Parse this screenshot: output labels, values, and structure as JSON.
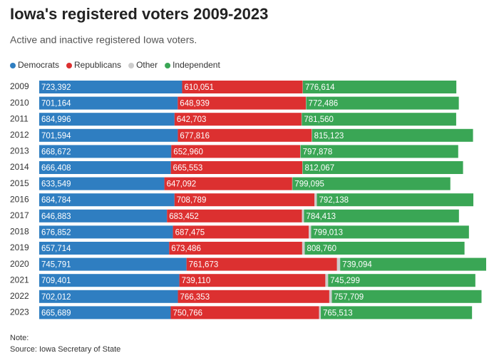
{
  "chart_data": {
    "type": "stacked-barh",
    "title": "Iowa's registered voters 2009-2023",
    "subtitle": "Active and inactive registered Iowa voters.",
    "categories": [
      "2009",
      "2010",
      "2011",
      "2012",
      "2013",
      "2014",
      "2015",
      "2016",
      "2017",
      "2018",
      "2019",
      "2020",
      "2021",
      "2022",
      "2023"
    ],
    "series": [
      {
        "name": "Democrats",
        "color": "#2f7ec1",
        "values": [
          723392,
          701164,
          684996,
          701594,
          668672,
          666408,
          633549,
          684784,
          646883,
          676852,
          657714,
          745791,
          709401,
          702012,
          665689
        ],
        "value_labels": [
          "723,392",
          "701,164",
          "684,996",
          "701,594",
          "668,672",
          "666,408",
          "633,549",
          "684,784",
          "646,883",
          "676,852",
          "657,714",
          "745,791",
          "709,401",
          "702,012",
          "665,689"
        ]
      },
      {
        "name": "Republicans",
        "color": "#dc3030",
        "values": [
          610051,
          648939,
          642703,
          677816,
          652960,
          665553,
          647092,
          708789,
          683452,
          687475,
          673486,
          761673,
          739110,
          766353,
          750766
        ],
        "value_labels": [
          "610,051",
          "648,939",
          "642,703",
          "677,816",
          "652,960",
          "665,553",
          "647,092",
          "708,789",
          "683,452",
          "687,475",
          "673,486",
          "761,673",
          "739,110",
          "766,353",
          "750,766"
        ]
      },
      {
        "name": "Other",
        "color": "#cccccc",
        "values": [
          1500,
          1500,
          1500,
          1500,
          1500,
          1500,
          1500,
          12000,
          10000,
          12000,
          13000,
          16000,
          14000,
          13000,
          9000
        ]
      },
      {
        "name": "Independent",
        "color": "#3aa655",
        "values": [
          776614,
          772486,
          781560,
          815123,
          797878,
          812067,
          799095,
          792138,
          784413,
          799013,
          808760,
          739094,
          745299,
          757709,
          765513
        ],
        "value_labels": [
          "776,614",
          "772,486",
          "781,560",
          "815,123",
          "797,878",
          "812,067",
          "799,095",
          "792,138",
          "784,413",
          "799,013",
          "808,760",
          "739,094",
          "745,299",
          "757,709",
          "765,513"
        ]
      }
    ],
    "note": "Note:",
    "source": "Source: Iowa Secretary of State"
  }
}
